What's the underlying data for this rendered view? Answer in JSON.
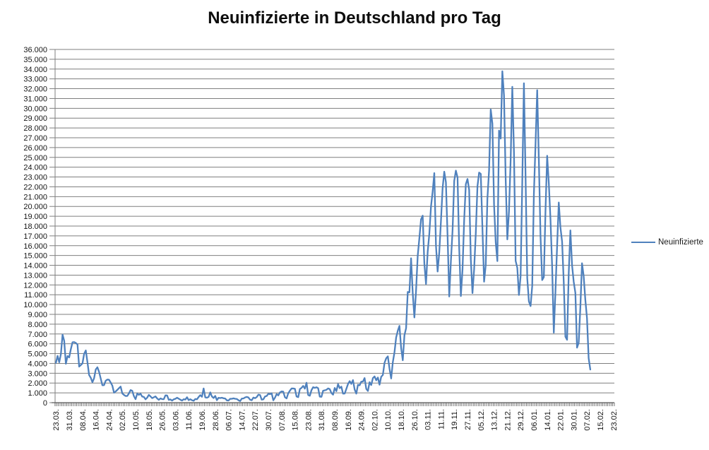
{
  "chart_data": {
    "type": "line",
    "title": "Neuinfizierte in Deutschland pro Tag",
    "xlabel": "",
    "ylabel": "",
    "ylim": [
      0,
      36000
    ],
    "y_tick_step": 1000,
    "grid": true,
    "legend_position": "right",
    "y_tick_labels": [
      "0",
      "1.000",
      "2.000",
      "3.000",
      "4.000",
      "5.000",
      "6.000",
      "7.000",
      "8.000",
      "9.000",
      "10.000",
      "11.000",
      "12.000",
      "13.000",
      "14.000",
      "15.000",
      "16.000",
      "17.000",
      "18.000",
      "19.000",
      "20.000",
      "21.000",
      "22.000",
      "23.000",
      "24.000",
      "25.000",
      "26.000",
      "27.000",
      "28.000",
      "29.000",
      "30.000",
      "31.000",
      "32.000",
      "33.000",
      "34.000",
      "35.000",
      "36.000"
    ],
    "x_tick_labels": [
      "23.03.",
      "31.03.",
      "08.04.",
      "16.04.",
      "24.04.",
      "02.05.",
      "10.05.",
      "18.05.",
      "26.05.",
      "03.06.",
      "11.06.",
      "19.06.",
      "28.06.",
      "06.07.",
      "14.07.",
      "22.07.",
      "30.07.",
      "07.08.",
      "15.08.",
      "23.08.",
      "31.08.",
      "08.09.",
      "16.09.",
      "24.09.",
      "02.10.",
      "10.10.",
      "18.10.",
      "26.10.",
      "03.11.",
      "11.11.",
      "19.11.",
      "27.11.",
      "05.12.",
      "13.12.",
      "21.12.",
      "29.12.",
      "06.01.",
      "14.01.",
      "22.01.",
      "30.01.",
      "07.02.",
      "15.02.",
      "23.02."
    ],
    "x_tick_interval": 8,
    "total_categories": 337,
    "colors": {
      "series_line": "#4F81BD",
      "gridline": "#7F7F7F",
      "axis": "#595959",
      "title_text": "#0D0D0D",
      "label_text": "#161616"
    },
    "series": [
      {
        "name": "Neuinfizierte",
        "color": "#4F81BD",
        "values": [
          4062,
          4764,
          4118,
          4954,
          6933,
          6294,
          3965,
          4751,
          4615,
          5453,
          6156,
          6174,
          6082,
          5936,
          3677,
          3834,
          4003,
          4974,
          5323,
          4133,
          2821,
          2537,
          2082,
          2486,
          3380,
          3609,
          3141,
          2458,
          1775,
          1785,
          2237,
          2352,
          2337,
          2055,
          1737,
          1018,
          1144,
          1304,
          1478,
          1639,
          945,
          793,
          679,
          685,
          947,
          1284,
          1209,
          667,
          357,
          933,
          798,
          913,
          620,
          583,
          342,
          513,
          797,
          639,
          460,
          548,
          638,
          431,
          289,
          432,
          362,
          353,
          741,
          738,
          286,
          333,
          213,
          342,
          394,
          507,
          407,
          301,
          214,
          350,
          318,
          555,
          258,
          348,
          247,
          192,
          378,
          345,
          580,
          770,
          601,
          1450,
          537,
          503,
          587,
          1045,
          630,
          477,
          687,
          256,
          498,
          466,
          503,
          446,
          422,
          239,
          219,
          390,
          397,
          442,
          395,
          378,
          248,
          159,
          412,
          429,
          534,
          583,
          529,
          305,
          249,
          522,
          454,
          569,
          815,
          781,
          305,
          340,
          633,
          684,
          902,
          870,
          955,
          240,
          509,
          879,
          741,
          1045,
          1147,
          1122,
          555,
          436,
          966,
          1226,
          1445,
          1449,
          1415,
          625,
          561,
          1390,
          1510,
          1707,
          1427,
          2034,
          782,
          711,
          1278,
          1576,
          1507,
          1571,
          1479,
          610,
          598,
          1218,
          1256,
          1311,
          1453,
          1378,
          988,
          814,
          1499,
          1176,
          1892,
          1484,
          1630,
          920,
          927,
          1407,
          1901,
          2194,
          1916,
          2297,
          1345,
          922,
          1821,
          1769,
          2143,
          2153,
          2507,
          1411,
          1192,
          2089,
          1798,
          2503,
          2673,
          2279,
          2563,
          1832,
          2639,
          2828,
          4058,
          4516,
          4721,
          3483,
          2467,
          4122,
          5132,
          6638,
          7334,
          7830,
          5587,
          4325,
          6868,
          7595,
          11287,
          11242,
          14714,
          11176,
          8685,
          11409,
          14964,
          16774,
          18681,
          19059,
          14177,
          12097,
          15352,
          17214,
          19990,
          21506,
          23399,
          16017,
          13363,
          15332,
          18487,
          21866,
          23542,
          22461,
          16947,
          10824,
          14419,
          17561,
          22609,
          23648,
          22964,
          15741,
          10864,
          13554,
          18633,
          22268,
          22806,
          21695,
          14611,
          11169,
          13604,
          17270,
          22046,
          23449,
          23318,
          17767,
          12332,
          14054,
          20815,
          23679,
          29875,
          28438,
          20200,
          16362,
          14432,
          27728,
          26923,
          33777,
          31300,
          22771,
          16643,
          19528,
          24740,
          32195,
          25533,
          14455,
          13755,
          10976,
          12892,
          22459,
          32552,
          22924,
          12690,
          10315,
          9847,
          11897,
          21237,
          26391,
          31849,
          24694,
          16946,
          12497,
          12802,
          19600,
          25164,
          22368,
          18678,
          13882,
          7141,
          11369,
          15974,
          20398,
          17862,
          16417,
          12257,
          6729,
          6412,
          13202,
          17553,
          14022,
          12321,
          11192,
          5608,
          6114,
          9705,
          14211,
          12908,
          10485,
          8616,
          4535,
          3379
        ]
      }
    ]
  }
}
